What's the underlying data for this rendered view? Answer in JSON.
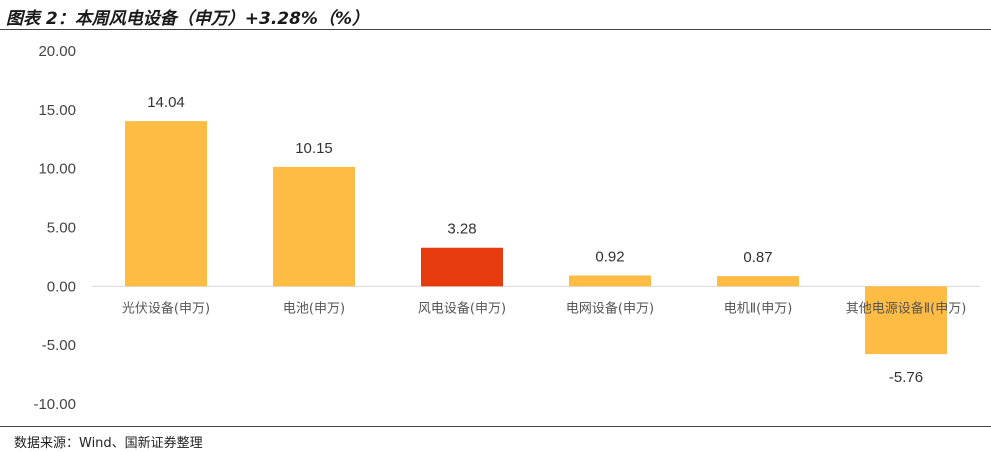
{
  "header": {
    "title": "图表 2：本周风电设备（申万）+3.28%（%）"
  },
  "footer": {
    "source": "数据来源：Wind、国新证券整理"
  },
  "chart_data": {
    "type": "bar",
    "title": "图表 2：本周风电设备（申万）+3.28%（%）",
    "xlabel": "",
    "ylabel": "",
    "categories": [
      "光伏设备(申万)",
      "电池(申万)",
      "风电设备(申万)",
      "电网设备(申万)",
      "电机Ⅱ(申万)",
      "其他电源设备Ⅱ(申万)"
    ],
    "values": [
      14.04,
      10.15,
      3.28,
      0.92,
      0.87,
      -5.76
    ],
    "value_labels": [
      "14.04",
      "10.15",
      "3.28",
      "0.92",
      "0.87",
      "-5.76"
    ],
    "ylim": [
      -10,
      20
    ],
    "yticks": [
      -10,
      -5,
      0,
      5,
      10,
      15,
      20
    ],
    "ytick_labels": [
      "-10.00",
      "-5.00",
      "0.00",
      "5.00",
      "10.00",
      "15.00",
      "20.00"
    ],
    "grid": false,
    "legend": "none",
    "colors": {
      "default": "#FFBC44",
      "highlight": "#E63A0F",
      "highlight_index": 2,
      "zero_line": "#D9D9D9"
    }
  }
}
